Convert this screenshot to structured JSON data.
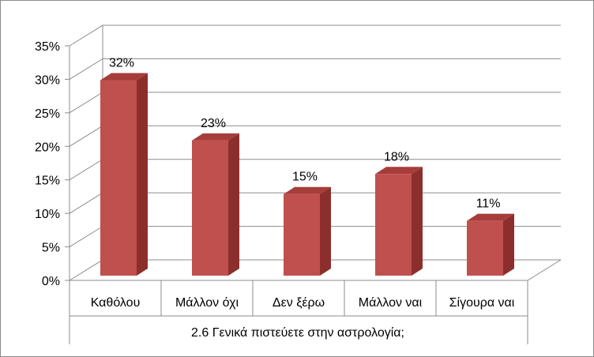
{
  "chart_data": {
    "type": "bar",
    "categories": [
      "Καθόλου",
      "Μάλλον όχι",
      "Δεν ξέρω",
      "Μάλλον ναι",
      "Σίγουρα ναι"
    ],
    "values": [
      32,
      23,
      15,
      18,
      11
    ],
    "data_labels": [
      "32%",
      "23%",
      "15%",
      "18%",
      "11%"
    ],
    "xlabel": "2.6 Γενικά πιστεύετε στην αστρολογία;",
    "ylabel": "",
    "title": "",
    "ylim": [
      0,
      35
    ],
    "yticks": [
      "0%",
      "5%",
      "10%",
      "15%",
      "20%",
      "25%",
      "30%",
      "35%"
    ],
    "grid": true,
    "legend": "none",
    "style": "3d-column",
    "colors": {
      "bar_front": "#c0504d",
      "bar_side": "#8c2f2c",
      "bar_top": "#a63d3a",
      "grid": "#8c8c8c"
    }
  }
}
